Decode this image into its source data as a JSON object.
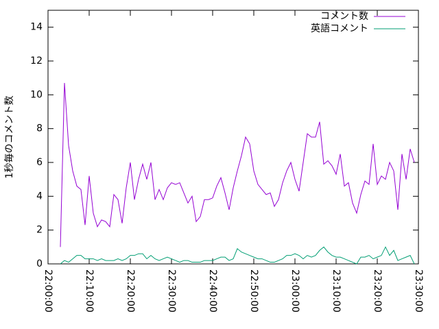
{
  "chart_data": {
    "type": "line",
    "y_label": "1秒毎のコメント数",
    "x": [
      "22:03:00",
      "22:04:00",
      "22:05:00",
      "22:06:00",
      "22:07:00",
      "22:08:00",
      "22:09:00",
      "22:10:00",
      "22:11:00",
      "22:12:00",
      "22:13:00",
      "22:14:00",
      "22:15:00",
      "22:16:00",
      "22:17:00",
      "22:18:00",
      "22:19:00",
      "22:20:00",
      "22:21:00",
      "22:22:00",
      "22:23:00",
      "22:24:00",
      "22:25:00",
      "22:26:00",
      "22:27:00",
      "22:28:00",
      "22:29:00",
      "22:30:00",
      "22:31:00",
      "22:32:00",
      "22:33:00",
      "22:34:00",
      "22:35:00",
      "22:36:00",
      "22:37:00",
      "22:38:00",
      "22:39:00",
      "22:40:00",
      "22:41:00",
      "22:42:00",
      "22:43:00",
      "22:44:00",
      "22:45:00",
      "22:46:00",
      "22:47:00",
      "22:48:00",
      "22:49:00",
      "22:50:00",
      "22:51:00",
      "22:52:00",
      "22:53:00",
      "22:54:00",
      "22:55:00",
      "22:56:00",
      "22:57:00",
      "22:58:00",
      "22:59:00",
      "23:00:00",
      "23:01:00",
      "23:02:00",
      "23:03:00",
      "23:04:00",
      "23:05:00",
      "23:06:00",
      "23:07:00",
      "23:08:00",
      "23:09:00",
      "23:10:00",
      "23:11:00",
      "23:12:00",
      "23:13:00",
      "23:14:00",
      "23:15:00",
      "23:16:00",
      "23:17:00",
      "23:18:00",
      "23:19:00",
      "23:20:00",
      "23:21:00",
      "23:22:00",
      "23:23:00",
      "23:24:00",
      "23:25:00",
      "23:26:00",
      "23:27:00",
      "23:28:00",
      "23:29:00"
    ],
    "series": [
      {
        "name": "コメント数",
        "color": "#9400d3",
        "values": [
          1.0,
          10.7,
          7.0,
          5.5,
          4.6,
          4.4,
          2.3,
          5.2,
          3.0,
          2.2,
          2.6,
          2.5,
          2.2,
          4.1,
          3.8,
          2.4,
          4.5,
          6.0,
          3.8,
          5.0,
          5.9,
          5.0,
          6.0,
          3.8,
          4.4,
          3.8,
          4.5,
          4.8,
          4.7,
          4.8,
          4.2,
          3.6,
          4.0,
          2.5,
          2.8,
          3.8,
          3.8,
          3.9,
          4.6,
          5.1,
          4.2,
          3.2,
          4.5,
          5.5,
          6.4,
          7.5,
          7.1,
          5.5,
          4.7,
          4.4,
          4.1,
          4.2,
          3.4,
          3.8,
          4.8,
          5.5,
          6.0,
          5.0,
          4.3,
          6.0,
          7.7,
          7.5,
          7.5,
          8.4,
          5.9,
          6.1,
          5.8,
          5.3,
          6.5,
          4.6,
          4.8,
          3.6,
          3.0,
          4.1,
          4.9,
          4.7,
          7.1,
          4.7,
          5.2,
          5.0,
          6.0,
          5.5,
          3.2,
          6.5,
          5.0,
          6.8,
          6.0
        ]
      },
      {
        "name": "英語コメント",
        "color": "#009e73",
        "values": [
          0.0,
          0.2,
          0.1,
          0.3,
          0.5,
          0.5,
          0.3,
          0.3,
          0.3,
          0.2,
          0.3,
          0.2,
          0.2,
          0.2,
          0.3,
          0.2,
          0.3,
          0.5,
          0.5,
          0.6,
          0.6,
          0.3,
          0.5,
          0.3,
          0.2,
          0.3,
          0.4,
          0.3,
          0.2,
          0.1,
          0.2,
          0.2,
          0.1,
          0.1,
          0.1,
          0.2,
          0.2,
          0.2,
          0.3,
          0.4,
          0.4,
          0.2,
          0.3,
          0.9,
          0.7,
          0.6,
          0.5,
          0.4,
          0.3,
          0.3,
          0.2,
          0.1,
          0.1,
          0.2,
          0.3,
          0.5,
          0.5,
          0.6,
          0.5,
          0.3,
          0.5,
          0.4,
          0.5,
          0.8,
          1.0,
          0.7,
          0.5,
          0.4,
          0.4,
          0.3,
          0.2,
          0.1,
          0.0,
          0.4,
          0.4,
          0.5,
          0.3,
          0.4,
          0.5,
          1.0,
          0.5,
          0.8,
          0.2,
          0.3,
          0.4,
          0.5,
          0.0
        ]
      }
    ],
    "xlim": [
      "22:00:00",
      "23:30:00"
    ],
    "xticks": [
      "22:00:00",
      "22:10:00",
      "22:20:00",
      "22:30:00",
      "22:40:00",
      "22:50:00",
      "23:00:00",
      "23:10:00",
      "23:20:00",
      "23:30:00"
    ],
    "ylim": [
      0,
      15
    ],
    "yticks": [
      0,
      2,
      4,
      6,
      8,
      10,
      12,
      14
    ],
    "legend": "top-right"
  }
}
